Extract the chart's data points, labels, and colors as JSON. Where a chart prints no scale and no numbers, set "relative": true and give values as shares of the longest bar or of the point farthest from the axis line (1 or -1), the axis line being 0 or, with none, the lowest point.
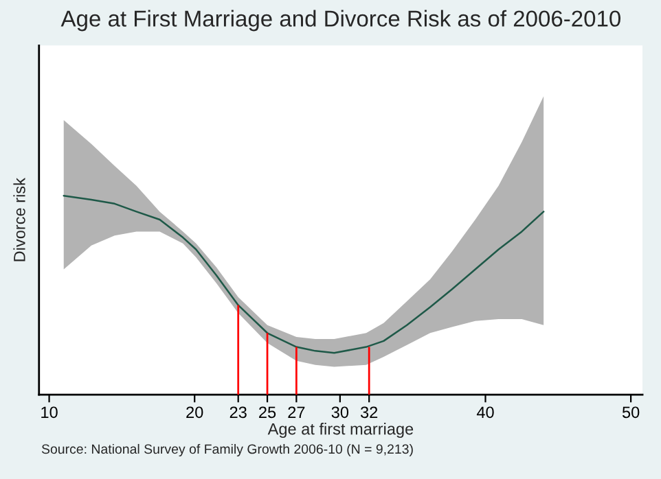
{
  "chart_data": {
    "type": "line",
    "title": "Age at First Marriage and Divorce Risk as of 2006-2010",
    "xlabel": "Age at first marriage",
    "ylabel": "Divorce risk",
    "relative": true,
    "xlim": [
      9.3,
      50.8
    ],
    "xticks": [
      10,
      20,
      23,
      25,
      27,
      30,
      32,
      40,
      50
    ],
    "tick_labels": "x",
    "series": [
      {
        "color": "#1e5948",
        "x": [
          11,
          12.9,
          14.5,
          16,
          17.6,
          19.2,
          20.1,
          21.5,
          23,
          25,
          27,
          28.3,
          29.6,
          31.8,
          33,
          34.6,
          36.2,
          37.7,
          39.3,
          40.9,
          42.5,
          44
        ],
        "values": [
          1,
          0.98,
          0.96,
          0.92,
          0.88,
          0.79,
          0.73,
          0.6,
          0.45,
          0.31,
          0.24,
          0.22,
          0.21,
          0.24,
          0.27,
          0.35,
          0.44,
          0.53,
          0.63,
          0.73,
          0.82,
          0.92
        ],
        "lower": [
          0.63,
          0.75,
          0.8,
          0.82,
          0.82,
          0.76,
          0.69,
          0.56,
          0.41,
          0.26,
          0.17,
          0.15,
          0.14,
          0.15,
          0.19,
          0.25,
          0.31,
          0.34,
          0.37,
          0.38,
          0.38,
          0.35
        ],
        "upper": [
          1.38,
          1.26,
          1.15,
          1.05,
          0.92,
          0.82,
          0.76,
          0.64,
          0.49,
          0.35,
          0.29,
          0.28,
          0.28,
          0.31,
          0.36,
          0.47,
          0.58,
          0.72,
          0.88,
          1.05,
          1.27,
          1.5
        ]
      },
      {
        "type": "bar",
        "color": "#ff0000",
        "x": [
          23,
          25,
          27,
          32
        ],
        "values": [
          0.45,
          0.31,
          0.24,
          0.24
        ]
      }
    ],
    "annotations": [
      "Source: National Survey of Family Growth 2006-10 (N = 9,213)"
    ]
  }
}
